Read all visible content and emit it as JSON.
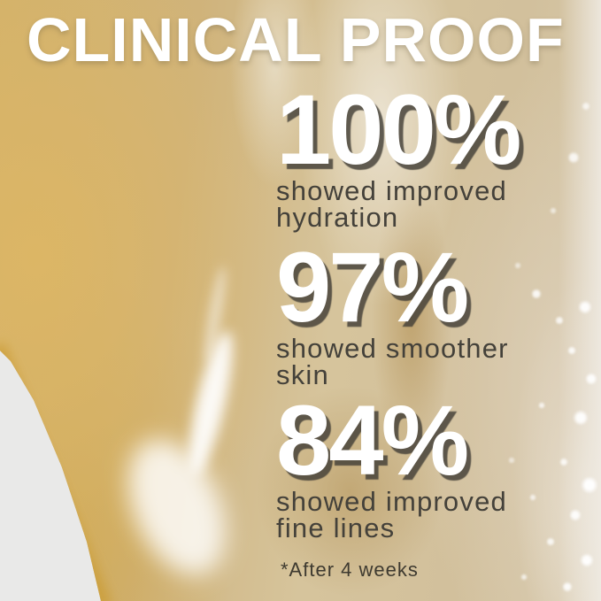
{
  "poster": {
    "title": "CLINICAL PROOF",
    "footnote": "*After 4 weeks"
  },
  "stats": [
    {
      "value": "100%",
      "lines": [
        "showed improved",
        "hydration"
      ]
    },
    {
      "value": "97%",
      "lines": [
        "showed smoother",
        "skin"
      ]
    },
    {
      "value": "84%",
      "lines": [
        "showed improved",
        "fine lines"
      ]
    }
  ],
  "colors": {
    "title_text": "#ffffff",
    "stat_number_text": "#ffffff",
    "stat_number_shadow": "#423e37",
    "stat_label_text": "#44413a",
    "footnote_text": "#3e3a30",
    "background_gray": "#e9e9e8",
    "gel_gold": "#d9b973",
    "gel_tan": "#cdb084",
    "gel_beige": "#d3c2a4",
    "gel_rim_gold": "#cb9c34",
    "gel_highlight": "#ffffff"
  }
}
